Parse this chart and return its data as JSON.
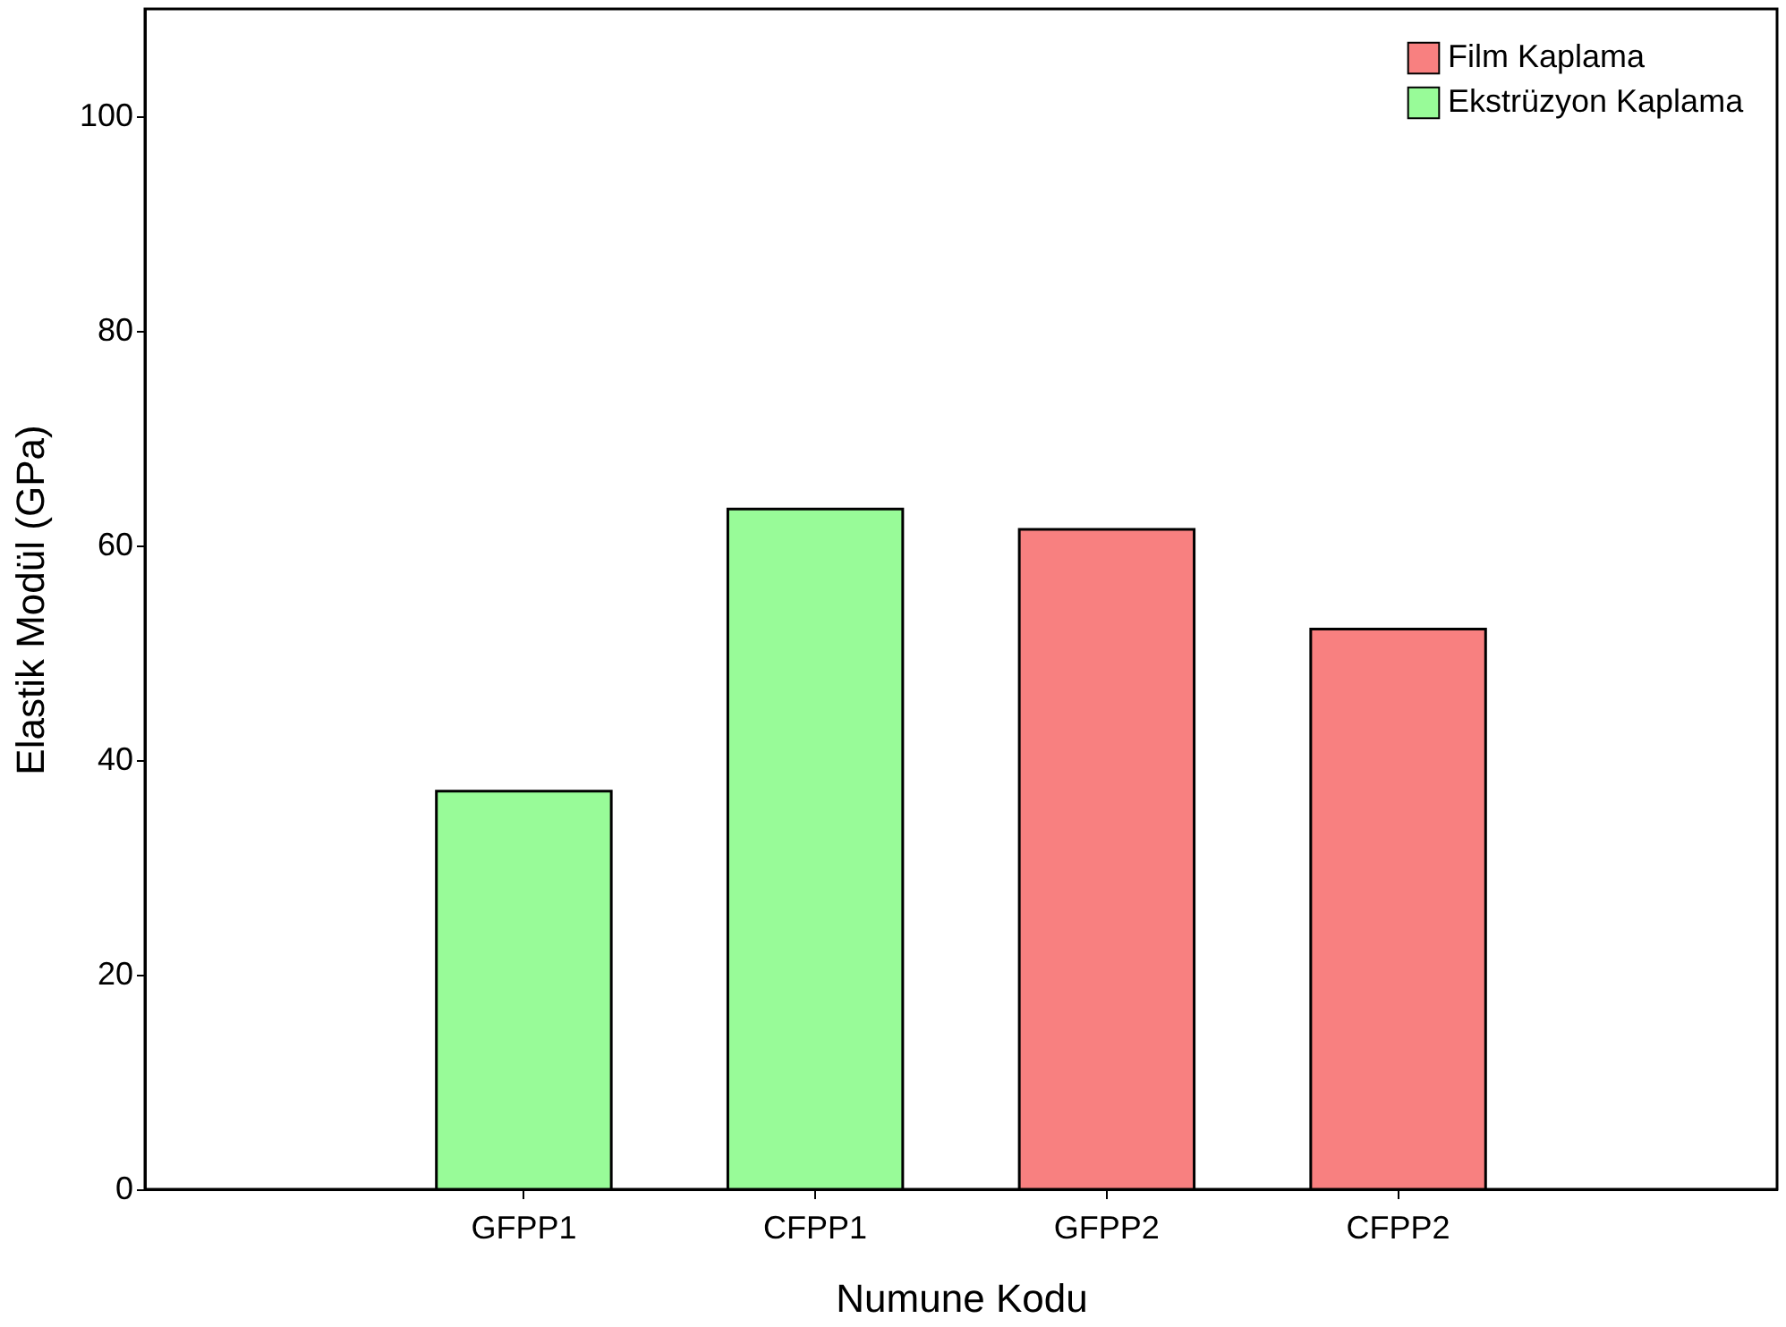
{
  "chart_data": {
    "type": "bar",
    "xlabel": "Numune Kodu",
    "ylabel": "Elastik Modül (GPa)",
    "categories": [
      "GFPP1",
      "CFPP1",
      "GFPP2",
      "CFPP2"
    ],
    "series": [
      {
        "name": "Film Kaplama",
        "color": "#f88080",
        "values": [
          null,
          null,
          61.5,
          52.2
        ]
      },
      {
        "name": "Ekstrüzyon Kaplama",
        "color": "#98fb98",
        "values": [
          37.1,
          63.4,
          null,
          null
        ]
      }
    ],
    "ylim": [
      0,
      110
    ],
    "yticks": [
      0,
      20,
      40,
      60,
      80,
      100
    ],
    "grid": false,
    "legend": "top right"
  }
}
